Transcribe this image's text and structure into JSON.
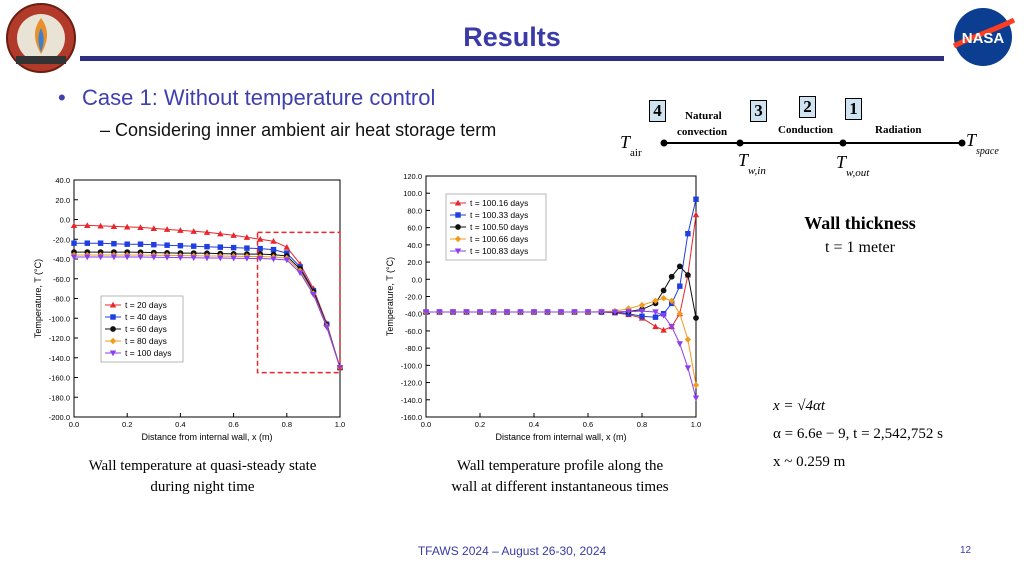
{
  "slide": {
    "title": "Results",
    "bullet1": "Case 1: Without temperature control",
    "bullet2": "Considering inner ambient air heat storage term",
    "footer": "TFAWS 2024 – August 26-30, 2024",
    "page_number": "12"
  },
  "logos": {
    "left": {
      "text": "THERMAL & FLUIDS",
      "sub": "ANALYSIS WORKSHOP",
      "icon": "tfaws-logo-icon"
    },
    "right": {
      "text": "NASA",
      "icon": "nasa-meatball-icon"
    }
  },
  "network": {
    "boxes": [
      "4",
      "3",
      "2",
      "1"
    ],
    "labels": {
      "natural1": "Natural",
      "natural2": "convection",
      "conduction": "Conduction",
      "radiation": "Radiation"
    },
    "nodes": {
      "t_air": {
        "main": "T",
        "sub": "air"
      },
      "t_w_in": {
        "main": "T",
        "sub": "w,in"
      },
      "t_w_out": {
        "main": "T",
        "sub": "w,out"
      },
      "t_space": {
        "main": "T",
        "sub": "space"
      }
    }
  },
  "wall": {
    "heading": "Wall thickness",
    "value": "t = 1 meter"
  },
  "equations": {
    "eq1": "x = √4αt",
    "eq2": "α = 6.6e − 9,  t = 2,542,752 s",
    "eq3": "x ~ 0.259 m"
  },
  "captions": {
    "left": [
      "Wall temperature at quasi-steady state",
      "during night time"
    ],
    "right": [
      "Wall temperature profile along the",
      "wall at different instantaneous times"
    ]
  },
  "colors": {
    "red": "#e8262b",
    "blue": "#1f3fe0",
    "black": "#111111",
    "orange": "#f39a1e",
    "purple": "#8a3ff0"
  },
  "chart_data": [
    {
      "type": "line",
      "xlabel": "Distance from internal wall, x (m)",
      "ylabel": "Temperature, T (°C)",
      "xlim": [
        0.0,
        1.0
      ],
      "ylim": [
        -200.0,
        40.0
      ],
      "xticks": [
        "0.0",
        "0.2",
        "0.4",
        "0.6",
        "0.8",
        "1.0"
      ],
      "yticks": [
        "40.0",
        "20.0",
        "0.0",
        "-20.0",
        "-40.0",
        "-60.0",
        "-80.0",
        "-100.0",
        "-120.0",
        "-140.0",
        "-160.0",
        "-180.0",
        "-200.0"
      ],
      "legend_position": "bottom-left",
      "annotation": "dashed red box around x 0.7–1.0",
      "x": [
        0.0,
        0.05,
        0.1,
        0.15,
        0.2,
        0.25,
        0.3,
        0.35,
        0.4,
        0.45,
        0.5,
        0.55,
        0.6,
        0.65,
        0.7,
        0.75,
        0.8,
        0.85,
        0.9,
        0.95,
        1.0
      ],
      "series": [
        {
          "name": "t = 20 days",
          "color": "red",
          "values": [
            -6,
            -6,
            -6.5,
            -7,
            -7.5,
            -8,
            -9,
            -10,
            -11,
            -12,
            -13,
            -14.5,
            -16,
            -18,
            -20,
            -22,
            -28,
            -45,
            -70,
            -105,
            -150
          ]
        },
        {
          "name": "t = 40 days",
          "color": "blue",
          "values": [
            -24,
            -24,
            -24,
            -24.5,
            -25,
            -25,
            -25.5,
            -26,
            -26.5,
            -27,
            -27.5,
            -28,
            -28.5,
            -29,
            -29.5,
            -30.5,
            -34,
            -48,
            -72,
            -106,
            -150
          ]
        },
        {
          "name": "t = 60 days",
          "color": "black",
          "values": [
            -33,
            -33,
            -33,
            -33,
            -33,
            -33.2,
            -33.5,
            -33.8,
            -34,
            -34,
            -34.2,
            -34.5,
            -34.8,
            -35,
            -35,
            -35.5,
            -37,
            -50,
            -73,
            -107,
            -150
          ]
        },
        {
          "name": "t = 80 days",
          "color": "orange",
          "values": [
            -36,
            -36,
            -36,
            -36,
            -36,
            -36,
            -36.2,
            -36.4,
            -36.6,
            -36.8,
            -37,
            -37,
            -37.2,
            -37.4,
            -37.5,
            -38,
            -39,
            -52,
            -75,
            -108,
            -150
          ]
        },
        {
          "name": "t = 100 days",
          "color": "purple",
          "values": [
            -38,
            -38,
            -38,
            -38,
            -38,
            -38,
            -38.2,
            -38.4,
            -38.6,
            -38.8,
            -39,
            -39,
            -39.2,
            -39.4,
            -39.5,
            -40,
            -41,
            -54,
            -76,
            -109,
            -150
          ]
        }
      ]
    },
    {
      "type": "line",
      "xlabel": "Distance from internal wall, x (m)",
      "ylabel": "Temperature, T (°C)",
      "xlim": [
        0.0,
        1.0
      ],
      "ylim": [
        -160.0,
        120.0
      ],
      "xticks": [
        "0.0",
        "0.2",
        "0.4",
        "0.6",
        "0.8",
        "1.0"
      ],
      "yticks": [
        "120.0",
        "100.0",
        "80.0",
        "60.0",
        "40.0",
        "20.0",
        "0.0",
        "-20.0",
        "-40.0",
        "-60.0",
        "-80.0",
        "-100.0",
        "-120.0",
        "-140.0",
        "-160.0"
      ],
      "legend_position": "top-left",
      "x": [
        0.0,
        0.05,
        0.1,
        0.15,
        0.2,
        0.25,
        0.3,
        0.35,
        0.4,
        0.45,
        0.5,
        0.55,
        0.6,
        0.65,
        0.7,
        0.75,
        0.8,
        0.85,
        0.88,
        0.91,
        0.94,
        0.97,
        1.0
      ],
      "series": [
        {
          "name": "t = 100.16 days",
          "color": "red",
          "values": [
            -38,
            -38,
            -38,
            -38,
            -38,
            -38,
            -38,
            -38,
            -38,
            -38,
            -38,
            -38,
            -38,
            -38,
            -39,
            -41,
            -45,
            -55,
            -59,
            -55,
            -40,
            5,
            75
          ]
        },
        {
          "name": "t = 100.33 days",
          "color": "blue",
          "values": [
            -38,
            -38,
            -38,
            -38,
            -38,
            -38,
            -38,
            -38,
            -38,
            -38,
            -38,
            -38,
            -38,
            -38,
            -38.5,
            -40,
            -43,
            -44,
            -40,
            -28,
            -8,
            53,
            93
          ]
        },
        {
          "name": "t = 100.50 days",
          "color": "black",
          "values": [
            -38,
            -38,
            -38,
            -38,
            -38,
            -38,
            -38,
            -38,
            -38,
            -38,
            -38,
            -38,
            -38,
            -38,
            -38,
            -37.5,
            -35,
            -28,
            -13,
            3,
            15,
            5,
            -45
          ]
        },
        {
          "name": "t = 100.66 days",
          "color": "orange",
          "values": [
            -38,
            -38,
            -38,
            -38,
            -38,
            -38,
            -38,
            -38,
            -38,
            -38,
            -38,
            -38,
            -38,
            -37.5,
            -37,
            -34,
            -30,
            -25,
            -22,
            -25,
            -40,
            -70,
            -123
          ]
        },
        {
          "name": "t = 100.83 days",
          "color": "purple",
          "values": [
            -38,
            -38,
            -38,
            -38,
            -38,
            -38,
            -38,
            -38,
            -38,
            -38,
            -38,
            -38,
            -38,
            -38,
            -38,
            -37.5,
            -37,
            -38,
            -42,
            -55,
            -75,
            -103,
            -138
          ]
        }
      ]
    }
  ]
}
